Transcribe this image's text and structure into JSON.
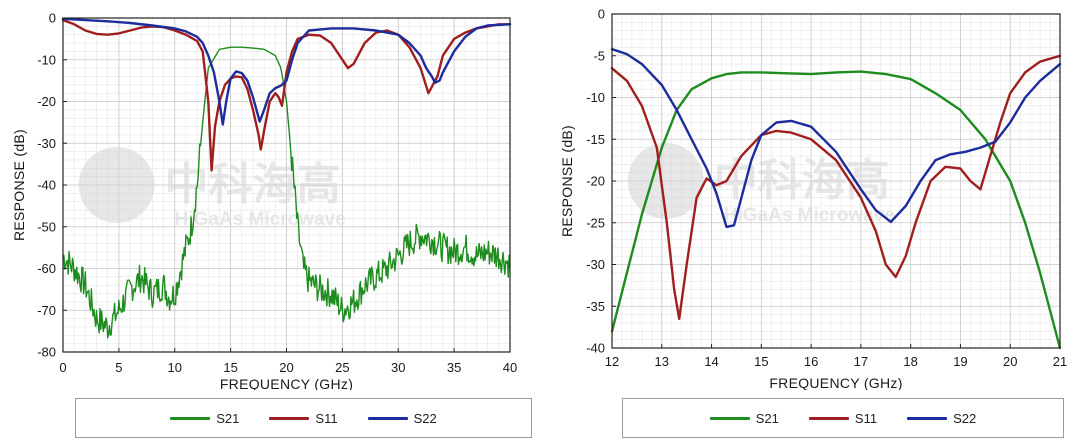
{
  "chart_data": [
    {
      "id": "left",
      "type": "line",
      "xlabel": "FREQUENCY (GHz)",
      "ylabel": "RESPONSE (dB)",
      "xlim": [
        0,
        40
      ],
      "ylim": [
        -80,
        0
      ],
      "xticks": [
        0,
        5,
        10,
        15,
        20,
        25,
        30,
        35,
        40
      ],
      "yticks": [
        0,
        -10,
        -20,
        -30,
        -40,
        -50,
        -60,
        -70,
        -80
      ],
      "grid": true,
      "watermark": {
        "text_cn": "中科海高",
        "text_en": "HiGaAs Microwave"
      },
      "series": [
        {
          "name": "S21",
          "color": "#1e8c1e",
          "noisy": true,
          "x": [
            0,
            1,
            2,
            3,
            4,
            5,
            6,
            7,
            8,
            9,
            9.5,
            10,
            11,
            11.5,
            12,
            12.5,
            13,
            14,
            15,
            16,
            17,
            18,
            19,
            19.5,
            20,
            20.5,
            21,
            21.5,
            22,
            23,
            24,
            25,
            26,
            27,
            28,
            29,
            30,
            31,
            32,
            33,
            34,
            35,
            36,
            37,
            38,
            39,
            40
          ],
          "y": [
            -57,
            -60,
            -64,
            -72,
            -74,
            -70,
            -65,
            -62,
            -66,
            -64,
            -67,
            -66,
            -55,
            -50,
            -40,
            -25,
            -12,
            -7.5,
            -7,
            -7,
            -7.2,
            -7.5,
            -9,
            -12,
            -20,
            -35,
            -50,
            -60,
            -63,
            -65,
            -66,
            -70,
            -68,
            -64,
            -62,
            -60,
            -57,
            -54,
            -52,
            -53,
            -55,
            -56,
            -55,
            -57,
            -56,
            -57,
            -59
          ]
        },
        {
          "name": "S11",
          "color": "#a01e1e",
          "noisy": false,
          "x": [
            0,
            1,
            2,
            3,
            4,
            5,
            6,
            7,
            8,
            9,
            10,
            11,
            12,
            12.5,
            13,
            13.3,
            13.6,
            14,
            14.5,
            15,
            15.5,
            16,
            16.5,
            17,
            17.5,
            17.7,
            18,
            18.5,
            19,
            19.3,
            19.6,
            20,
            20.5,
            21,
            22,
            23,
            24,
            25,
            25.5,
            26,
            27,
            28,
            29,
            30,
            31,
            32,
            32.7,
            33.5,
            34,
            35,
            36,
            37,
            38,
            39,
            40
          ],
          "y": [
            -0.5,
            -1.5,
            -3,
            -3.8,
            -4,
            -3.7,
            -3,
            -2.3,
            -2,
            -2.2,
            -3,
            -4,
            -5.5,
            -8,
            -20,
            -36.5,
            -26,
            -20,
            -16,
            -14.5,
            -14,
            -14.2,
            -17,
            -22,
            -28,
            -31.5,
            -27,
            -20,
            -18,
            -19,
            -21,
            -13,
            -8,
            -5,
            -4,
            -4.2,
            -6,
            -10,
            -12,
            -11,
            -6,
            -3.5,
            -3,
            -4,
            -7,
            -12,
            -18,
            -14,
            -9,
            -5,
            -3.5,
            -2.5,
            -2,
            -1.5,
            -1.5
          ]
        },
        {
          "name": "S22",
          "color": "#1c2c9c",
          "noisy": false,
          "x": [
            0,
            2,
            4,
            6,
            8,
            10,
            11,
            12,
            12.5,
            13,
            13.5,
            14,
            14.3,
            14.6,
            15,
            15.5,
            16,
            16.5,
            17,
            17.6,
            18,
            18.5,
            19,
            19.5,
            20,
            20.5,
            21,
            22,
            24,
            26,
            28,
            30,
            31,
            32,
            32.5,
            33,
            33.3,
            33.7,
            34,
            35,
            36,
            37,
            38,
            40
          ],
          "y": [
            -0.2,
            -0.5,
            -0.8,
            -1.2,
            -1.8,
            -2.5,
            -3.2,
            -4.5,
            -6,
            -9,
            -13,
            -20,
            -25.5,
            -20,
            -14.5,
            -12.8,
            -13.2,
            -15,
            -19,
            -24.8,
            -22,
            -18,
            -16.8,
            -16.2,
            -15,
            -10,
            -6,
            -3,
            -2.5,
            -2.5,
            -3,
            -4,
            -6,
            -9,
            -12,
            -14,
            -15.5,
            -15,
            -13,
            -8,
            -4.5,
            -2.5,
            -1.8,
            -1.5
          ]
        }
      ]
    },
    {
      "id": "right",
      "type": "line",
      "xlabel": "FREQUENCY (GHz)",
      "ylabel": "RESPONSE (dB)",
      "xlim": [
        12,
        21
      ],
      "ylim": [
        -40,
        0
      ],
      "xticks": [
        12,
        13,
        14,
        15,
        16,
        17,
        18,
        19,
        20,
        21
      ],
      "yticks": [
        0,
        -5,
        -10,
        -15,
        -20,
        -25,
        -30,
        -35,
        -40
      ],
      "grid": true,
      "watermark": {
        "text_cn": "中科海高",
        "text_en": "HiGaAs Microwave"
      },
      "series": [
        {
          "name": "S21",
          "color": "#1e8c1e",
          "noisy": false,
          "x": [
            12,
            12.3,
            12.6,
            13,
            13.3,
            13.6,
            14,
            14.3,
            14.6,
            15,
            15.5,
            16,
            16.5,
            17,
            17.5,
            18,
            18.5,
            19,
            19.5,
            20,
            20.3,
            20.6,
            21
          ],
          "y": [
            -38,
            -31,
            -24,
            -16,
            -11.5,
            -9,
            -7.7,
            -7.2,
            -7,
            -7,
            -7.1,
            -7.2,
            -7,
            -6.9,
            -7.2,
            -7.8,
            -9.5,
            -11.5,
            -15,
            -20,
            -25,
            -31,
            -40
          ]
        },
        {
          "name": "S11",
          "color": "#a01e1e",
          "noisy": false,
          "x": [
            12,
            12.3,
            12.6,
            12.9,
            13.1,
            13.25,
            13.35,
            13.5,
            13.7,
            13.9,
            14.1,
            14.3,
            14.6,
            15,
            15.3,
            15.6,
            16,
            16.5,
            17,
            17.3,
            17.5,
            17.7,
            17.9,
            18.1,
            18.4,
            18.7,
            19,
            19.2,
            19.4,
            19.6,
            19.8,
            20,
            20.3,
            20.6,
            21
          ],
          "y": [
            -6.5,
            -8,
            -11,
            -16,
            -25,
            -33,
            -36.5,
            -30,
            -22,
            -19.7,
            -20.5,
            -20,
            -17,
            -14.5,
            -14,
            -14.2,
            -15,
            -17.5,
            -22,
            -26,
            -30,
            -31.5,
            -29,
            -25,
            -20,
            -18.3,
            -18.5,
            -20,
            -21,
            -17,
            -13,
            -9.5,
            -7,
            -5.7,
            -5
          ]
        },
        {
          "name": "S22",
          "color": "#1c2c9c",
          "noisy": false,
          "x": [
            12,
            12.3,
            12.6,
            13,
            13.3,
            13.6,
            13.9,
            14.1,
            14.3,
            14.45,
            14.6,
            14.8,
            15,
            15.3,
            15.6,
            16,
            16.5,
            17,
            17.3,
            17.6,
            17.9,
            18.2,
            18.5,
            18.8,
            19.1,
            19.4,
            19.7,
            20,
            20.3,
            20.6,
            21
          ],
          "y": [
            -4.2,
            -4.8,
            -6,
            -8.5,
            -11.5,
            -15,
            -18.5,
            -21.5,
            -25.5,
            -25.3,
            -22,
            -17.5,
            -14.5,
            -13,
            -12.8,
            -13.5,
            -16.5,
            -21,
            -23.5,
            -24.9,
            -23,
            -20,
            -17.5,
            -16.8,
            -16.5,
            -16,
            -15.3,
            -13,
            -10,
            -8,
            -6
          ]
        }
      ]
    }
  ],
  "legend": {
    "items": [
      {
        "label": "S21",
        "color": "#1e8c1e"
      },
      {
        "label": "S11",
        "color": "#a01e1e"
      },
      {
        "label": "S22",
        "color": "#1c2c9c"
      }
    ]
  }
}
